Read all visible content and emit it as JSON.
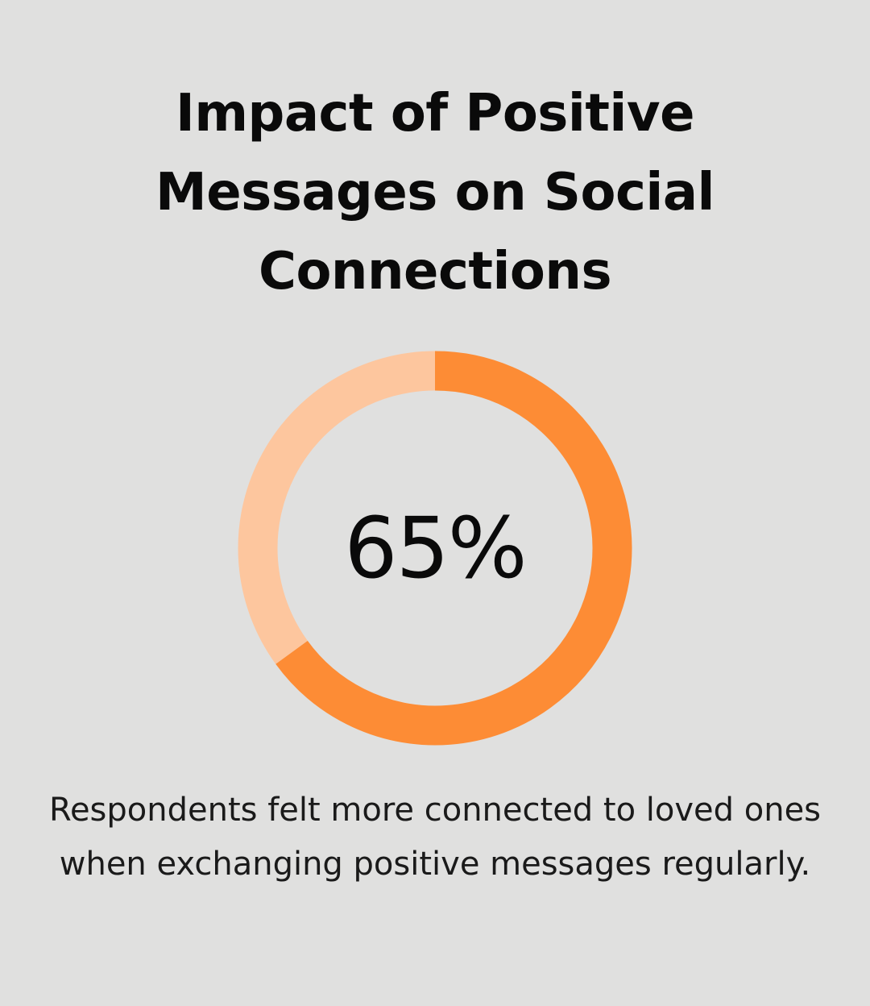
{
  "title": "Impact of Positive Messages on Social Connections",
  "description": "Respondents felt more connected to loved ones when exchanging positive messages regularly.",
  "chart_data": {
    "type": "pie",
    "variant": "donut",
    "center_label": "65%",
    "slices": [
      {
        "value": 65,
        "color": "#fd8c35"
      },
      {
        "value": 35,
        "color": "#fdc69e"
      }
    ]
  }
}
